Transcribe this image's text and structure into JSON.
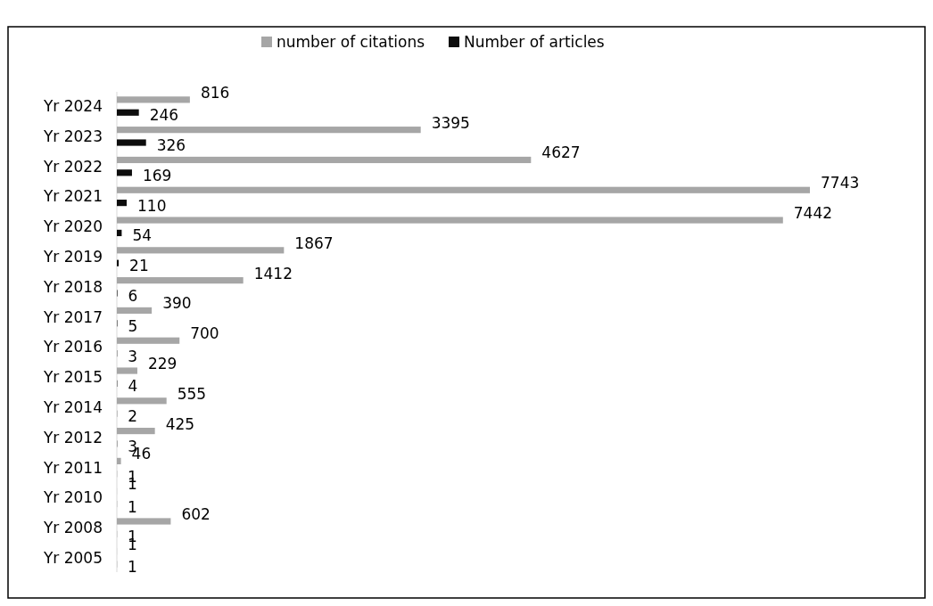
{
  "chart_data": {
    "type": "bar",
    "orientation": "horizontal",
    "categories": [
      "Yr 2024",
      "Yr 2023",
      "Yr 2022",
      "Yr 2021",
      "Yr 2020",
      "Yr 2019",
      "Yr 2018",
      "Yr 2017",
      "Yr 2016",
      "Yr 2015",
      "Yr 2014",
      "Yr 2012",
      "Yr 2011",
      "Yr 2010",
      "Yr 2008",
      "Yr 2005"
    ],
    "series": [
      {
        "name": "number of citations",
        "color": "#a6a6a6",
        "values": [
          816,
          3395,
          4627,
          7743,
          7442,
          1867,
          1412,
          390,
          700,
          229,
          555,
          425,
          46,
          1,
          602,
          1
        ]
      },
      {
        "name": "Number of articles",
        "color": "#0d0d0d",
        "values": [
          246,
          326,
          169,
          110,
          54,
          21,
          6,
          5,
          3,
          4,
          2,
          3,
          1,
          1,
          1,
          1
        ]
      }
    ],
    "tick_labels": "y",
    "data_labels": true,
    "legend": "top"
  }
}
